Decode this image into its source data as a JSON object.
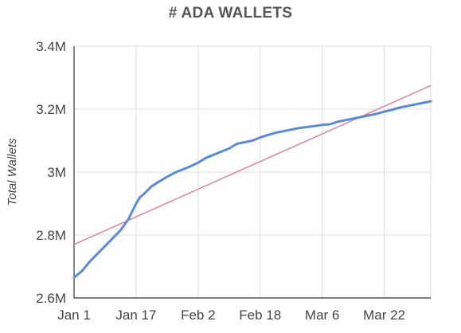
{
  "chart_data": {
    "type": "line",
    "title": "# ADA WALLETS",
    "xlabel": "",
    "ylabel": "Total Wallets",
    "x_tick_labels": [
      "Jan 1",
      "Jan 17",
      "Feb 2",
      "Feb 18",
      "Mar 6",
      "Mar 22"
    ],
    "x_tick_dates": [
      "2021-01-01",
      "2021-01-17",
      "2021-02-02",
      "2021-02-18",
      "2021-03-06",
      "2021-03-22"
    ],
    "xlim": [
      "2021-01-01",
      "2021-04-03"
    ],
    "y_tick_values": [
      2.6,
      2.8,
      3.0,
      3.2,
      3.4
    ],
    "y_tick_labels": [
      "2.6M",
      "2.8M",
      "3M",
      "3.2M",
      "3.4M"
    ],
    "ylim": [
      2.6,
      3.4
    ],
    "y_unit": "M",
    "grid": true,
    "colors": {
      "series": "#5b8bd6",
      "trendline": "#e08a9b",
      "grid": "#dddddd",
      "axis": "#333333"
    },
    "series": [
      {
        "x": [
          "2021-01-01",
          "2021-01-03",
          "2021-01-05",
          "2021-01-07",
          "2021-01-09",
          "2021-01-11",
          "2021-01-13",
          "2021-01-15",
          "2021-01-17",
          "2021-01-18",
          "2021-01-19",
          "2021-01-21",
          "2021-01-23",
          "2021-01-25",
          "2021-01-27",
          "2021-01-29",
          "2021-01-31",
          "2021-02-02",
          "2021-02-04",
          "2021-02-06",
          "2021-02-08",
          "2021-02-10",
          "2021-02-12",
          "2021-02-14",
          "2021-02-16",
          "2021-02-18",
          "2021-02-20",
          "2021-02-22",
          "2021-02-24",
          "2021-02-26",
          "2021-02-28",
          "2021-03-02",
          "2021-03-04",
          "2021-03-06",
          "2021-03-08",
          "2021-03-10",
          "2021-03-12",
          "2021-03-14",
          "2021-03-16",
          "2021-03-18",
          "2021-03-20",
          "2021-03-22",
          "2021-03-24",
          "2021-03-26",
          "2021-03-28",
          "2021-03-30",
          "2021-04-01",
          "2021-04-03"
        ],
        "values": [
          2.665,
          2.685,
          2.715,
          2.74,
          2.765,
          2.79,
          2.815,
          2.85,
          2.9,
          2.92,
          2.93,
          2.955,
          2.97,
          2.985,
          2.998,
          3.008,
          3.018,
          3.03,
          3.045,
          3.055,
          3.065,
          3.075,
          3.09,
          3.095,
          3.1,
          3.11,
          3.118,
          3.125,
          3.13,
          3.135,
          3.14,
          3.143,
          3.146,
          3.15,
          3.152,
          3.16,
          3.165,
          3.17,
          3.175,
          3.18,
          3.185,
          3.192,
          3.198,
          3.205,
          3.21,
          3.215,
          3.22,
          3.225
        ]
      },
      {
        "x": [
          "2021-01-01",
          "2021-04-03"
        ],
        "values": [
          2.77,
          3.275
        ]
      }
    ]
  }
}
